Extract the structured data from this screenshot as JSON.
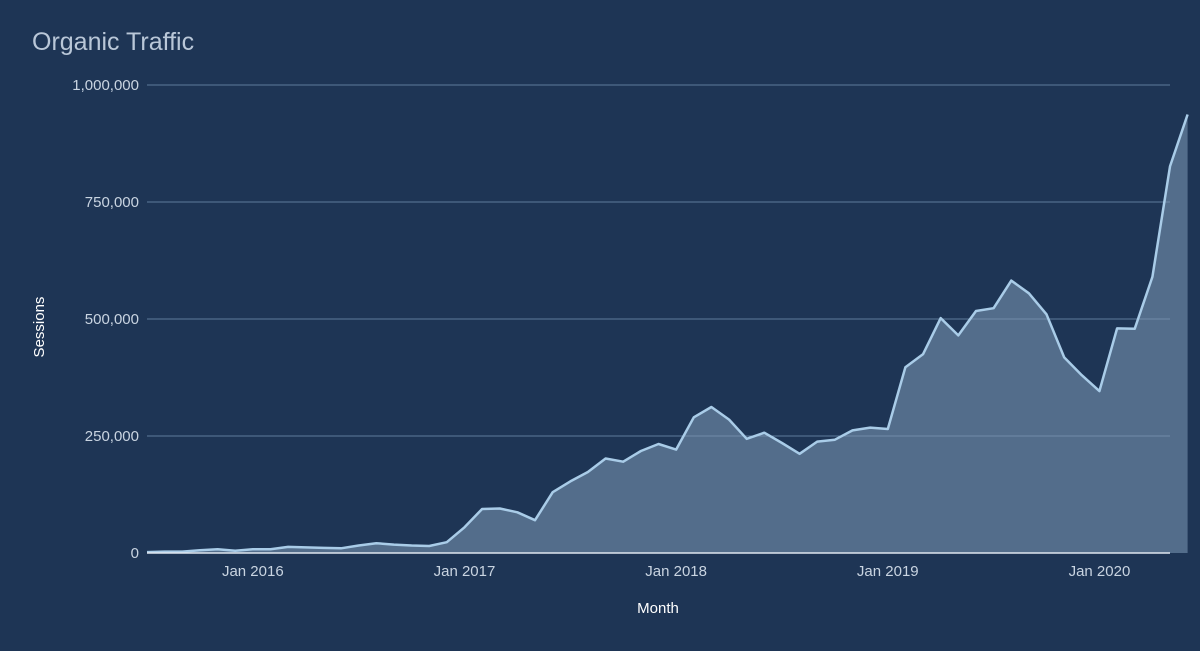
{
  "chart_data": {
    "type": "area",
    "title": "Organic Traffic",
    "xlabel": "Month",
    "ylabel": "Sessions",
    "ylim": [
      0,
      1000000
    ],
    "y_ticks": [
      {
        "value": 0,
        "label": "0"
      },
      {
        "value": 250000,
        "label": "250,000"
      },
      {
        "value": 500000,
        "label": "500,000"
      },
      {
        "value": 750000,
        "label": "750,000"
      },
      {
        "value": 1000000,
        "label": "1,000,000"
      }
    ],
    "x_ticks": [
      {
        "month": "2016-01",
        "label": "Jan 2016"
      },
      {
        "month": "2017-01",
        "label": "Jan 2017"
      },
      {
        "month": "2018-01",
        "label": "Jan 2018"
      },
      {
        "month": "2019-01",
        "label": "Jan 2019"
      },
      {
        "month": "2020-01",
        "label": "Jan 2020"
      }
    ],
    "xlim": [
      "2015-07",
      "2020-05"
    ],
    "grid": true,
    "legend": "none",
    "colors": {
      "background": "#1e3555",
      "line": "#a9cce8",
      "fill": "#7f9bb8",
      "grid": "#5f7b9a"
    },
    "series": [
      {
        "x": [
          "2015-07",
          "2015-08",
          "2015-09",
          "2015-10",
          "2015-11",
          "2015-12",
          "2016-01",
          "2016-02",
          "2016-03",
          "2016-04",
          "2016-05",
          "2016-06",
          "2016-07",
          "2016-08",
          "2016-09",
          "2016-10",
          "2016-11",
          "2016-12",
          "2017-01",
          "2017-02",
          "2017-03",
          "2017-04",
          "2017-05",
          "2017-06",
          "2017-07",
          "2017-08",
          "2017-09",
          "2017-10",
          "2017-11",
          "2017-12",
          "2018-01",
          "2018-02",
          "2018-03",
          "2018-04",
          "2018-05",
          "2018-06",
          "2018-07",
          "2018-08",
          "2018-09",
          "2018-10",
          "2018-11",
          "2018-12",
          "2019-01",
          "2019-02",
          "2019-03",
          "2019-04",
          "2019-05",
          "2019-06",
          "2019-07",
          "2019-08",
          "2019-09",
          "2019-10",
          "2019-11",
          "2019-12",
          "2020-01",
          "2020-02",
          "2020-03",
          "2020-04",
          "2020-05",
          "2020-06"
        ],
        "y": [
          2000,
          3000,
          3000,
          6000,
          8000,
          5000,
          8000,
          8000,
          13000,
          12000,
          11000,
          10000,
          16000,
          21000,
          18000,
          16000,
          15000,
          23000,
          55000,
          94000,
          95000,
          87000,
          70000,
          130000,
          153000,
          173000,
          202000,
          195000,
          218000,
          233000,
          221000,
          290000,
          312000,
          285000,
          244000,
          257000,
          235000,
          212000,
          238000,
          242000,
          262000,
          268000,
          265000,
          397000,
          425000,
          502000,
          465000,
          517000,
          523000,
          582000,
          555000,
          510000,
          418000,
          380000,
          346000,
          480000,
          479000,
          590000,
          826000,
          937000
        ]
      }
    ]
  }
}
